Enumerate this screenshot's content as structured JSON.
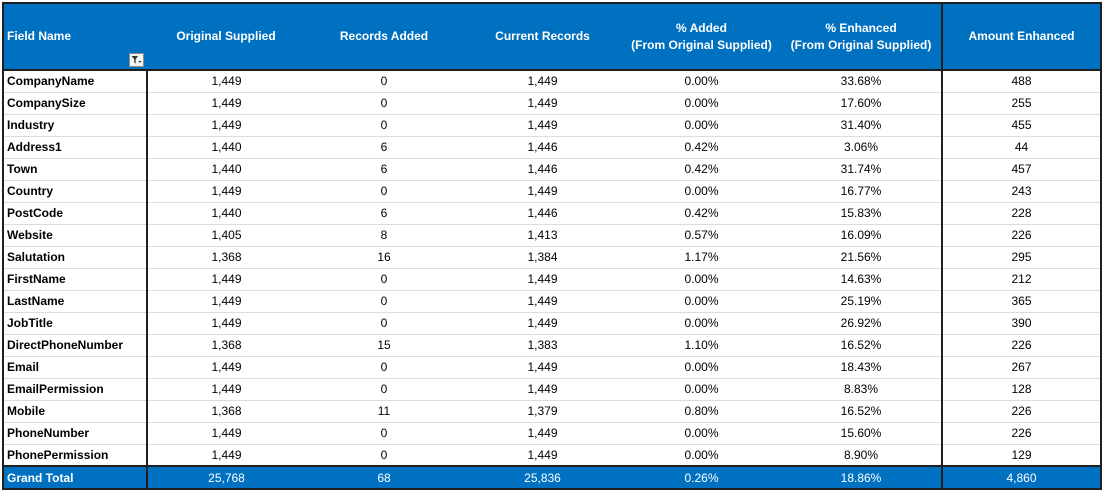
{
  "colors": {
    "header_bg": "#0070c0",
    "header_text": "#ffffff",
    "border": "#1f1f1f",
    "row_divider": "#dcdcdc"
  },
  "header": {
    "field_name": "Field Name",
    "original_supplied": "Original Supplied",
    "records_added": "Records Added",
    "current_records": "Current Records",
    "pct_added_line1": "% Added",
    "pct_added_line2": "(From Original Supplied)",
    "pct_enhanced_line1": "% Enhanced",
    "pct_enhanced_line2": "(From Original Supplied)",
    "amount_enhanced": "Amount Enhanced",
    "filter_icon": "filter-dropdown-icon"
  },
  "rows": [
    {
      "field": "CompanyName",
      "original": "1,449",
      "added": "0",
      "current": "1,449",
      "pct_added": "0.00%",
      "pct_enhanced": "33.68%",
      "amount": "488"
    },
    {
      "field": "CompanySize",
      "original": "1,449",
      "added": "0",
      "current": "1,449",
      "pct_added": "0.00%",
      "pct_enhanced": "17.60%",
      "amount": "255"
    },
    {
      "field": "Industry",
      "original": "1,449",
      "added": "0",
      "current": "1,449",
      "pct_added": "0.00%",
      "pct_enhanced": "31.40%",
      "amount": "455"
    },
    {
      "field": "Address1",
      "original": "1,440",
      "added": "6",
      "current": "1,446",
      "pct_added": "0.42%",
      "pct_enhanced": "3.06%",
      "amount": "44"
    },
    {
      "field": "Town",
      "original": "1,440",
      "added": "6",
      "current": "1,446",
      "pct_added": "0.42%",
      "pct_enhanced": "31.74%",
      "amount": "457"
    },
    {
      "field": "Country",
      "original": "1,449",
      "added": "0",
      "current": "1,449",
      "pct_added": "0.00%",
      "pct_enhanced": "16.77%",
      "amount": "243"
    },
    {
      "field": "PostCode",
      "original": "1,440",
      "added": "6",
      "current": "1,446",
      "pct_added": "0.42%",
      "pct_enhanced": "15.83%",
      "amount": "228"
    },
    {
      "field": "Website",
      "original": "1,405",
      "added": "8",
      "current": "1,413",
      "pct_added": "0.57%",
      "pct_enhanced": "16.09%",
      "amount": "226"
    },
    {
      "field": "Salutation",
      "original": "1,368",
      "added": "16",
      "current": "1,384",
      "pct_added": "1.17%",
      "pct_enhanced": "21.56%",
      "amount": "295"
    },
    {
      "field": "FirstName",
      "original": "1,449",
      "added": "0",
      "current": "1,449",
      "pct_added": "0.00%",
      "pct_enhanced": "14.63%",
      "amount": "212"
    },
    {
      "field": "LastName",
      "original": "1,449",
      "added": "0",
      "current": "1,449",
      "pct_added": "0.00%",
      "pct_enhanced": "25.19%",
      "amount": "365"
    },
    {
      "field": "JobTitle",
      "original": "1,449",
      "added": "0",
      "current": "1,449",
      "pct_added": "0.00%",
      "pct_enhanced": "26.92%",
      "amount": "390"
    },
    {
      "field": "DirectPhoneNumber",
      "original": "1,368",
      "added": "15",
      "current": "1,383",
      "pct_added": "1.10%",
      "pct_enhanced": "16.52%",
      "amount": "226"
    },
    {
      "field": "Email",
      "original": "1,449",
      "added": "0",
      "current": "1,449",
      "pct_added": "0.00%",
      "pct_enhanced": "18.43%",
      "amount": "267"
    },
    {
      "field": "EmailPermission",
      "original": "1,449",
      "added": "0",
      "current": "1,449",
      "pct_added": "0.00%",
      "pct_enhanced": "8.83%",
      "amount": "128"
    },
    {
      "field": "Mobile",
      "original": "1,368",
      "added": "11",
      "current": "1,379",
      "pct_added": "0.80%",
      "pct_enhanced": "16.52%",
      "amount": "226"
    },
    {
      "field": "PhoneNumber",
      "original": "1,449",
      "added": "0",
      "current": "1,449",
      "pct_added": "0.00%",
      "pct_enhanced": "15.60%",
      "amount": "226"
    },
    {
      "field": "PhonePermission",
      "original": "1,449",
      "added": "0",
      "current": "1,449",
      "pct_added": "0.00%",
      "pct_enhanced": "8.90%",
      "amount": "129"
    }
  ],
  "total": {
    "label": "Grand Total",
    "original": "25,768",
    "added": "68",
    "current": "25,836",
    "pct_added": "0.26%",
    "pct_enhanced": "18.86%",
    "amount": "4,860"
  }
}
